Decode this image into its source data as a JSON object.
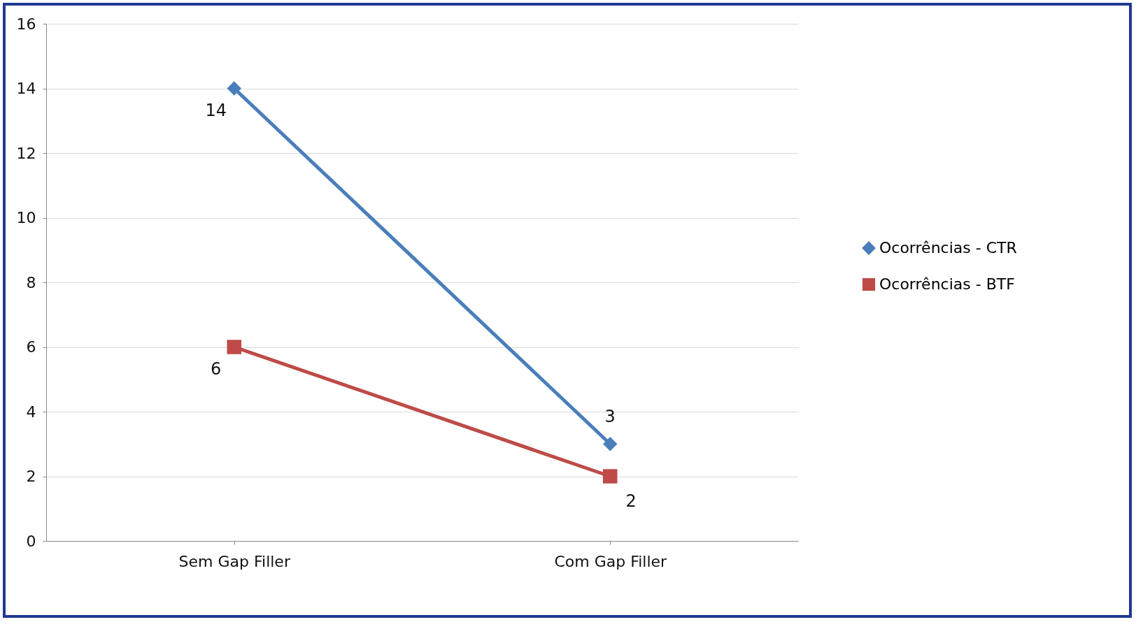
{
  "chart_data": {
    "type": "line",
    "categories": [
      "Sem Gap Filler",
      "Com Gap Filler"
    ],
    "series": [
      {
        "name": "Ocorrências - CTR",
        "color": "#4a7ebb",
        "marker": "diamond",
        "values": [
          14,
          3
        ]
      },
      {
        "name": "Ocorrências - BTF",
        "color": "#be4b48",
        "marker": "square",
        "values": [
          6,
          2
        ]
      }
    ],
    "ylim": [
      0,
      16
    ],
    "yticks": [
      0,
      2,
      4,
      6,
      8,
      10,
      12,
      14,
      16
    ],
    "grid": "y",
    "legend": "right",
    "data_labels": true
  }
}
